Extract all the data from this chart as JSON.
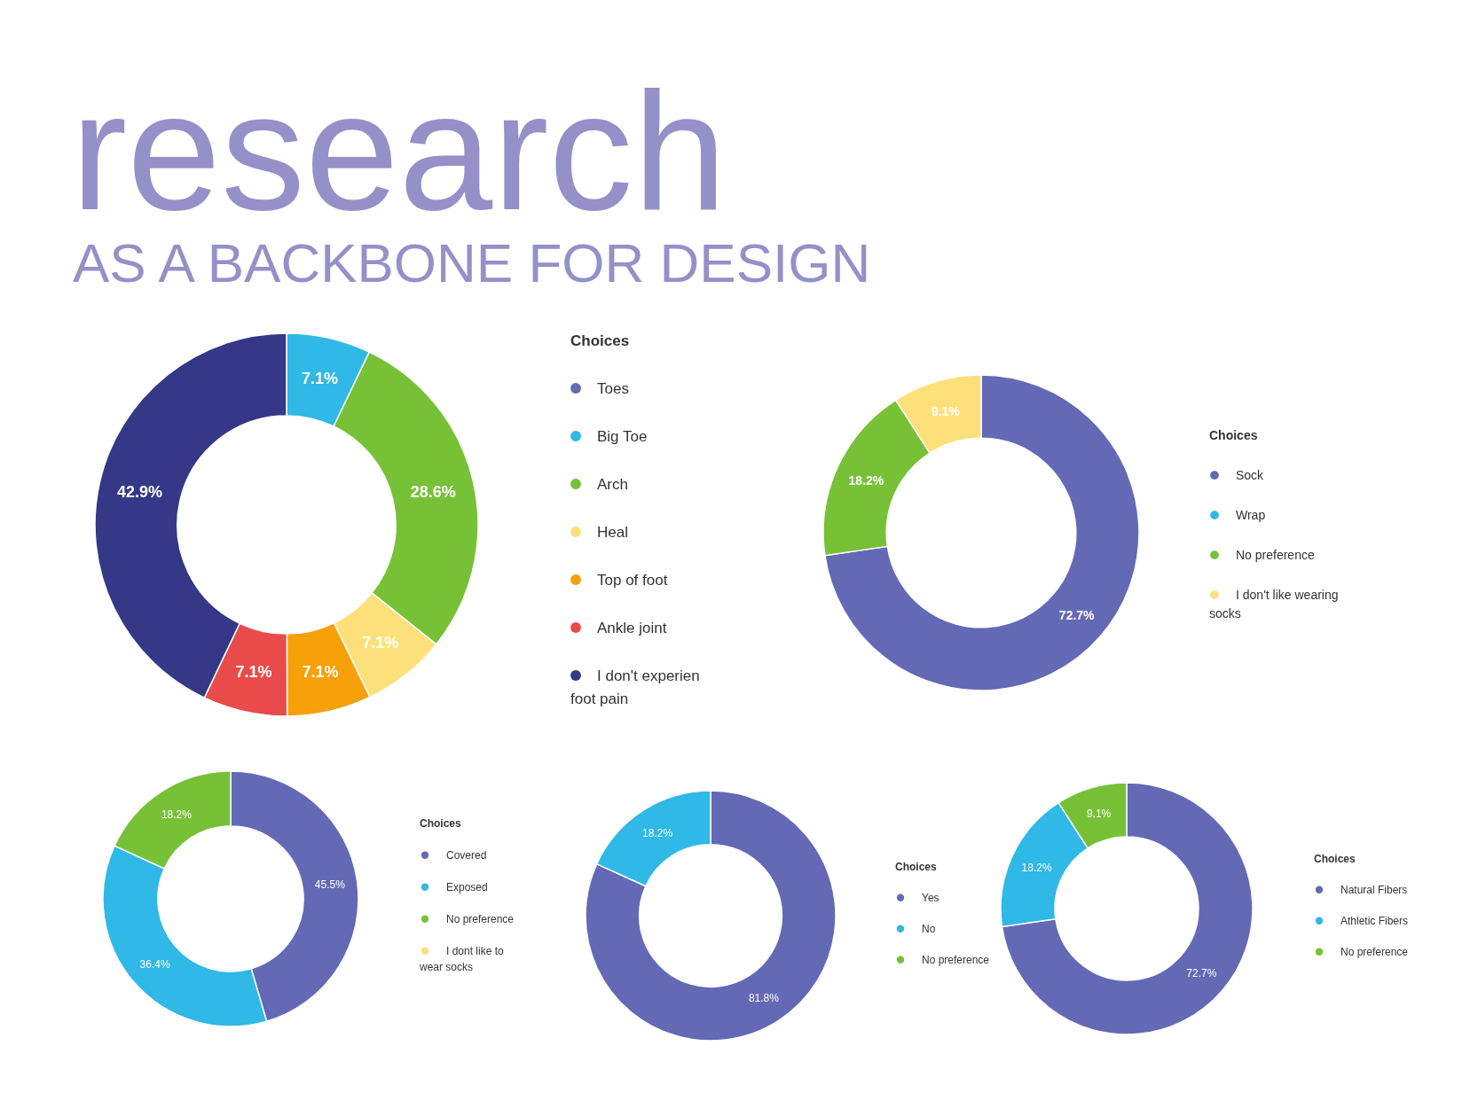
{
  "chart_data": [
    {
      "type": "donut",
      "title": "research",
      "subtitle": "AS A BACKBONE FOR DESIGN",
      "legend_title": "Choices",
      "legend": "right",
      "categories": [
        "Toes",
        "Big Toe",
        "Arch",
        "Heal",
        "Top of foot",
        "Ankle joint",
        "I don't experien foot pain"
      ],
      "values": [
        0,
        7.1,
        28.6,
        7.1,
        7.1,
        7.1,
        42.9
      ],
      "colors": [
        "#6469b5",
        "#30b8e6",
        "#77c137",
        "#fde07a",
        "#f6a00a",
        "#e94b4b",
        "#353887"
      ],
      "value_labels": [
        null,
        "7.1%",
        "28.6%",
        "7.1%",
        "7.1%",
        "7.1%",
        "42.9%"
      ]
    },
    {
      "type": "donut",
      "legend_title": "Choices",
      "legend": "right",
      "categories": [
        "Sock",
        "Wrap",
        "No preference",
        "I don't like wearing socks"
      ],
      "values": [
        72.7,
        0,
        18.2,
        9.1
      ],
      "colors": [
        "#6469b5",
        "#30b8e6",
        "#77c137",
        "#fde07a"
      ],
      "value_labels": [
        "72.7%",
        null,
        "18.2%",
        "9.1%"
      ]
    },
    {
      "type": "donut",
      "legend_title": "Choices",
      "legend": "right",
      "categories": [
        "Covered",
        "Exposed",
        "No preference",
        "I dont like to wear socks"
      ],
      "values": [
        45.5,
        36.4,
        18.2,
        0
      ],
      "colors": [
        "#6469b5",
        "#30b8e6",
        "#77c137",
        "#fde07a"
      ],
      "value_labels": [
        "45.5%",
        "36.4%",
        "18.2%",
        null
      ]
    },
    {
      "type": "donut",
      "legend_title": "Choices",
      "legend": "right",
      "categories": [
        "Yes",
        "No",
        "No preference"
      ],
      "values": [
        81.8,
        18.2,
        0
      ],
      "colors": [
        "#6469b5",
        "#30b8e6",
        "#77c137"
      ],
      "value_labels": [
        "81.8%",
        "18.2%",
        null
      ]
    },
    {
      "type": "donut",
      "legend_title": "Choices",
      "legend": "right",
      "categories": [
        "Natural Fibers",
        "Athletic Fibers",
        "No preference"
      ],
      "values": [
        72.7,
        18.2,
        9.1
      ],
      "colors": [
        "#6469b5",
        "#30b8e6",
        "#77c137"
      ],
      "value_labels": [
        "72.7%",
        "18.2%",
        "9.1%"
      ]
    }
  ]
}
